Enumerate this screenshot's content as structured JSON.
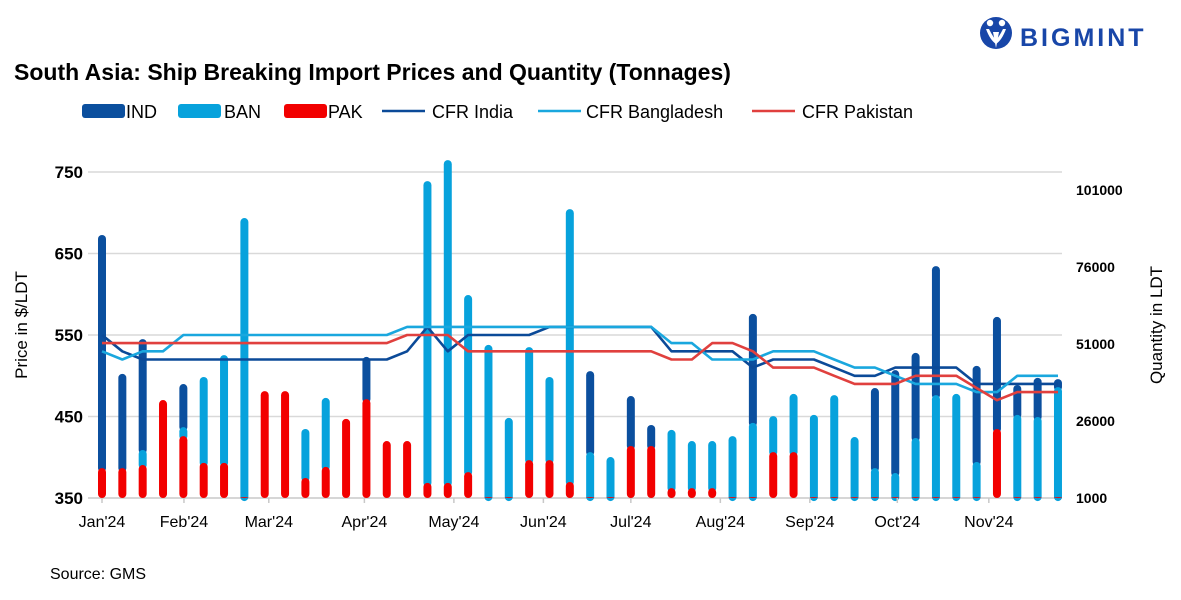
{
  "logo": {
    "text": "BIGMINT",
    "color": "#1846a8"
  },
  "source": "Source: GMS",
  "chart_data": {
    "type": "bar+line",
    "title": "South Asia: Ship Breaking Import Prices and Quantity (Tonnages)",
    "ylabel": "Price in $/LDT",
    "y2label": "Quantity in LDT",
    "ylim": [
      350,
      750
    ],
    "yticks": [
      "750",
      "650",
      "550",
      "450",
      "350"
    ],
    "y2lim": [
      1000,
      101000
    ],
    "y2ticks": [
      "101000",
      "76000",
      "51000",
      "26000",
      "1000"
    ],
    "xticks": [
      "Jan'24",
      "Feb'24",
      "Mar'24",
      "Apr'24",
      "May'24",
      "Jun'24",
      "Jul'24",
      "Aug'24",
      "Sep'24",
      "Oct'24",
      "Nov'24"
    ],
    "grid": true,
    "legend_position": "top",
    "bar_mode": "stacked",
    "bar_series": [
      {
        "name": "IND",
        "color": "#0b4f9e",
        "axis": "right",
        "values": [
          75700,
          30600,
          36000,
          0,
          14000,
          0,
          0,
          0,
          0,
          0,
          0,
          0,
          0,
          13700,
          0,
          0,
          0,
          0,
          0,
          0,
          0,
          0,
          0,
          0,
          26300,
          0,
          16200,
          6800,
          0,
          0,
          0,
          0,
          35400,
          0,
          0,
          0,
          0,
          0,
          26000,
          33400,
          27600,
          41900,
          0,
          31200,
          36400,
          9700,
          12700,
          2600
        ]
      },
      {
        "name": "BAN",
        "color": "#07a2dc",
        "axis": "right",
        "values": [
          0,
          0,
          4900,
          0,
          2900,
          27900,
          35000,
          90600,
          0,
          0,
          15900,
          22400,
          0,
          0,
          0,
          0,
          98000,
          104800,
          57500,
          49400,
          25700,
          36700,
          27000,
          88600,
          14600,
          13000,
          0,
          0,
          18900,
          15300,
          15300,
          19800,
          24100,
          11700,
          18900,
          26700,
          33100,
          19500,
          9400,
          7800,
          19200,
          33100,
          33500,
          11400,
          0,
          26700,
          26000,
          35700
        ]
      },
      {
        "name": "PAK",
        "color": "#f20000",
        "axis": "right",
        "values": [
          9700,
          9700,
          10700,
          31800,
          20100,
          11400,
          11400,
          300,
          34700,
          34700,
          6500,
          10100,
          25700,
          32100,
          18500,
          18500,
          4900,
          4900,
          8400,
          300,
          300,
          12300,
          12300,
          5200,
          300,
          300,
          16900,
          16900,
          3200,
          3200,
          3200,
          300,
          300,
          14900,
          14900,
          300,
          300,
          300,
          300,
          300,
          300,
          300,
          300,
          300,
          22400,
          300,
          300,
          300
        ]
      }
    ],
    "line_series": [
      {
        "name": "CFR India",
        "color": "#0b4a98",
        "axis": "left",
        "values": [
          550,
          530,
          520,
          520,
          520,
          520,
          520,
          520,
          520,
          520,
          520,
          520,
          520,
          520,
          520,
          530,
          560,
          530,
          550,
          550,
          550,
          550,
          560,
          560,
          560,
          560,
          560,
          560,
          530,
          530,
          530,
          530,
          510,
          520,
          520,
          520,
          510,
          500,
          500,
          510,
          510,
          510,
          510,
          490,
          490,
          490,
          490,
          490
        ]
      },
      {
        "name": "CFR Bangladesh",
        "color": "#1aa7de",
        "axis": "left",
        "values": [
          530,
          520,
          530,
          530,
          550,
          550,
          550,
          550,
          550,
          550,
          550,
          550,
          550,
          550,
          550,
          560,
          560,
          560,
          560,
          560,
          560,
          560,
          560,
          560,
          560,
          560,
          560,
          560,
          540,
          540,
          520,
          520,
          520,
          530,
          530,
          530,
          520,
          510,
          510,
          500,
          490,
          490,
          490,
          480,
          480,
          500,
          500,
          500
        ]
      },
      {
        "name": "CFR Pakistan",
        "color": "#e0403e",
        "axis": "left",
        "values": [
          540,
          540,
          540,
          540,
          540,
          540,
          540,
          540,
          540,
          540,
          540,
          540,
          540,
          540,
          540,
          550,
          550,
          550,
          530,
          530,
          530,
          530,
          530,
          530,
          530,
          530,
          530,
          530,
          520,
          520,
          540,
          540,
          530,
          510,
          510,
          510,
          500,
          490,
          490,
          490,
          500,
          500,
          500,
          485,
          470,
          480,
          480,
          480
        ]
      }
    ]
  }
}
